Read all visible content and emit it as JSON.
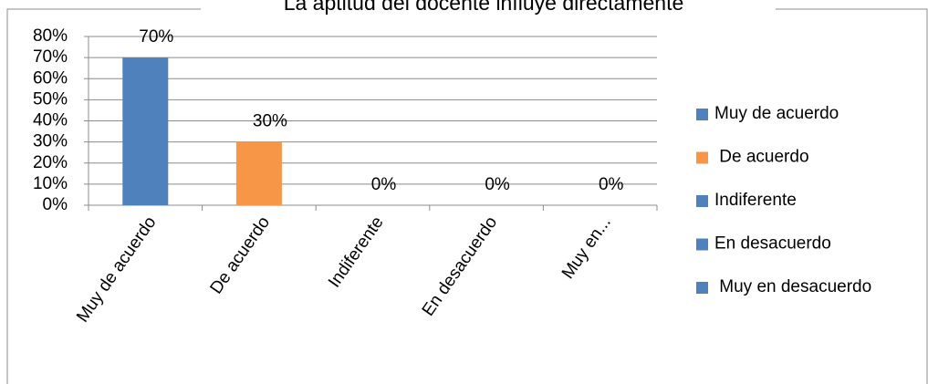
{
  "chart_data": {
    "type": "bar",
    "title": "La aptitud del docente influye directamente",
    "categories": [
      "Muy de acuerdo",
      "De acuerdo",
      "Indiferente",
      "En desacuerdo",
      "Muy en..."
    ],
    "values": [
      70,
      30,
      0,
      0,
      0
    ],
    "value_labels": [
      "70%",
      "30%",
      "0%",
      "0%",
      "0%"
    ],
    "colors": [
      "#4f81bd",
      "#f79646",
      "#4f81bd",
      "#4f81bd",
      "#4f81bd"
    ],
    "legend": [
      {
        "name": "Muy de acuerdo",
        "color": "#4f81bd"
      },
      {
        "name": " De acuerdo",
        "color": "#f79646"
      },
      {
        "name": "Indiferente",
        "color": "#4f81bd"
      },
      {
        "name": "En desacuerdo",
        "color": "#4f81bd"
      },
      {
        "name": " Muy en desacuerdo",
        "color": "#4f81bd"
      }
    ],
    "legend_position": "right",
    "ylim": [
      0,
      80
    ],
    "yticks": [
      {
        "value": 0,
        "label": "0%"
      },
      {
        "value": 10,
        "label": "10%"
      },
      {
        "value": 20,
        "label": "20%"
      },
      {
        "value": 30,
        "label": "30%"
      },
      {
        "value": 40,
        "label": "40%"
      },
      {
        "value": 50,
        "label": "50%"
      },
      {
        "value": 60,
        "label": "60%"
      },
      {
        "value": 70,
        "label": "70%"
      },
      {
        "value": 80,
        "label": "80%"
      }
    ],
    "grid": true
  }
}
